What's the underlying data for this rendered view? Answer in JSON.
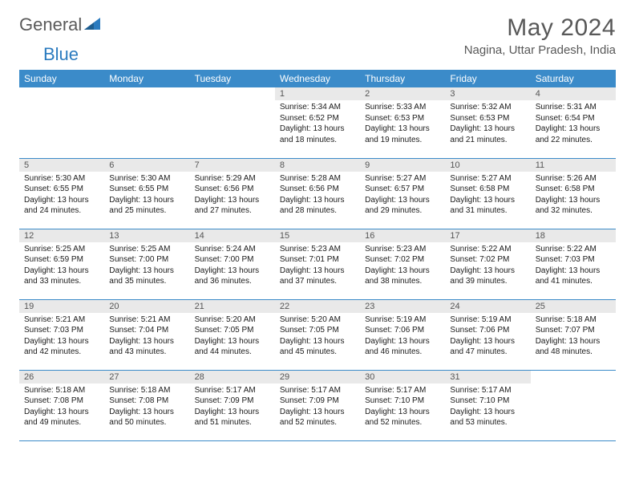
{
  "logo": {
    "part1": "General",
    "part2": "Blue"
  },
  "title": "May 2024",
  "location": "Nagina, Uttar Pradesh, India",
  "colors": {
    "header_bg": "#3b8bc9",
    "header_text": "#ffffff",
    "daynum_bg": "#e9e9e9",
    "daynum_text": "#555555",
    "body_text": "#1a1a1a",
    "rule": "#3b8bc9",
    "title_text": "#585858",
    "logo_gray": "#5a5a5a",
    "logo_blue": "#2b7bbf"
  },
  "day_names": [
    "Sunday",
    "Monday",
    "Tuesday",
    "Wednesday",
    "Thursday",
    "Friday",
    "Saturday"
  ],
  "weeks": [
    [
      null,
      null,
      null,
      {
        "n": "1",
        "sr": "Sunrise: 5:34 AM",
        "ss": "Sunset: 6:52 PM",
        "d1": "Daylight: 13 hours",
        "d2": "and 18 minutes."
      },
      {
        "n": "2",
        "sr": "Sunrise: 5:33 AM",
        "ss": "Sunset: 6:53 PM",
        "d1": "Daylight: 13 hours",
        "d2": "and 19 minutes."
      },
      {
        "n": "3",
        "sr": "Sunrise: 5:32 AM",
        "ss": "Sunset: 6:53 PM",
        "d1": "Daylight: 13 hours",
        "d2": "and 21 minutes."
      },
      {
        "n": "4",
        "sr": "Sunrise: 5:31 AM",
        "ss": "Sunset: 6:54 PM",
        "d1": "Daylight: 13 hours",
        "d2": "and 22 minutes."
      }
    ],
    [
      {
        "n": "5",
        "sr": "Sunrise: 5:30 AM",
        "ss": "Sunset: 6:55 PM",
        "d1": "Daylight: 13 hours",
        "d2": "and 24 minutes."
      },
      {
        "n": "6",
        "sr": "Sunrise: 5:30 AM",
        "ss": "Sunset: 6:55 PM",
        "d1": "Daylight: 13 hours",
        "d2": "and 25 minutes."
      },
      {
        "n": "7",
        "sr": "Sunrise: 5:29 AM",
        "ss": "Sunset: 6:56 PM",
        "d1": "Daylight: 13 hours",
        "d2": "and 27 minutes."
      },
      {
        "n": "8",
        "sr": "Sunrise: 5:28 AM",
        "ss": "Sunset: 6:56 PM",
        "d1": "Daylight: 13 hours",
        "d2": "and 28 minutes."
      },
      {
        "n": "9",
        "sr": "Sunrise: 5:27 AM",
        "ss": "Sunset: 6:57 PM",
        "d1": "Daylight: 13 hours",
        "d2": "and 29 minutes."
      },
      {
        "n": "10",
        "sr": "Sunrise: 5:27 AM",
        "ss": "Sunset: 6:58 PM",
        "d1": "Daylight: 13 hours",
        "d2": "and 31 minutes."
      },
      {
        "n": "11",
        "sr": "Sunrise: 5:26 AM",
        "ss": "Sunset: 6:58 PM",
        "d1": "Daylight: 13 hours",
        "d2": "and 32 minutes."
      }
    ],
    [
      {
        "n": "12",
        "sr": "Sunrise: 5:25 AM",
        "ss": "Sunset: 6:59 PM",
        "d1": "Daylight: 13 hours",
        "d2": "and 33 minutes."
      },
      {
        "n": "13",
        "sr": "Sunrise: 5:25 AM",
        "ss": "Sunset: 7:00 PM",
        "d1": "Daylight: 13 hours",
        "d2": "and 35 minutes."
      },
      {
        "n": "14",
        "sr": "Sunrise: 5:24 AM",
        "ss": "Sunset: 7:00 PM",
        "d1": "Daylight: 13 hours",
        "d2": "and 36 minutes."
      },
      {
        "n": "15",
        "sr": "Sunrise: 5:23 AM",
        "ss": "Sunset: 7:01 PM",
        "d1": "Daylight: 13 hours",
        "d2": "and 37 minutes."
      },
      {
        "n": "16",
        "sr": "Sunrise: 5:23 AM",
        "ss": "Sunset: 7:02 PM",
        "d1": "Daylight: 13 hours",
        "d2": "and 38 minutes."
      },
      {
        "n": "17",
        "sr": "Sunrise: 5:22 AM",
        "ss": "Sunset: 7:02 PM",
        "d1": "Daylight: 13 hours",
        "d2": "and 39 minutes."
      },
      {
        "n": "18",
        "sr": "Sunrise: 5:22 AM",
        "ss": "Sunset: 7:03 PM",
        "d1": "Daylight: 13 hours",
        "d2": "and 41 minutes."
      }
    ],
    [
      {
        "n": "19",
        "sr": "Sunrise: 5:21 AM",
        "ss": "Sunset: 7:03 PM",
        "d1": "Daylight: 13 hours",
        "d2": "and 42 minutes."
      },
      {
        "n": "20",
        "sr": "Sunrise: 5:21 AM",
        "ss": "Sunset: 7:04 PM",
        "d1": "Daylight: 13 hours",
        "d2": "and 43 minutes."
      },
      {
        "n": "21",
        "sr": "Sunrise: 5:20 AM",
        "ss": "Sunset: 7:05 PM",
        "d1": "Daylight: 13 hours",
        "d2": "and 44 minutes."
      },
      {
        "n": "22",
        "sr": "Sunrise: 5:20 AM",
        "ss": "Sunset: 7:05 PM",
        "d1": "Daylight: 13 hours",
        "d2": "and 45 minutes."
      },
      {
        "n": "23",
        "sr": "Sunrise: 5:19 AM",
        "ss": "Sunset: 7:06 PM",
        "d1": "Daylight: 13 hours",
        "d2": "and 46 minutes."
      },
      {
        "n": "24",
        "sr": "Sunrise: 5:19 AM",
        "ss": "Sunset: 7:06 PM",
        "d1": "Daylight: 13 hours",
        "d2": "and 47 minutes."
      },
      {
        "n": "25",
        "sr": "Sunrise: 5:18 AM",
        "ss": "Sunset: 7:07 PM",
        "d1": "Daylight: 13 hours",
        "d2": "and 48 minutes."
      }
    ],
    [
      {
        "n": "26",
        "sr": "Sunrise: 5:18 AM",
        "ss": "Sunset: 7:08 PM",
        "d1": "Daylight: 13 hours",
        "d2": "and 49 minutes."
      },
      {
        "n": "27",
        "sr": "Sunrise: 5:18 AM",
        "ss": "Sunset: 7:08 PM",
        "d1": "Daylight: 13 hours",
        "d2": "and 50 minutes."
      },
      {
        "n": "28",
        "sr": "Sunrise: 5:17 AM",
        "ss": "Sunset: 7:09 PM",
        "d1": "Daylight: 13 hours",
        "d2": "and 51 minutes."
      },
      {
        "n": "29",
        "sr": "Sunrise: 5:17 AM",
        "ss": "Sunset: 7:09 PM",
        "d1": "Daylight: 13 hours",
        "d2": "and 52 minutes."
      },
      {
        "n": "30",
        "sr": "Sunrise: 5:17 AM",
        "ss": "Sunset: 7:10 PM",
        "d1": "Daylight: 13 hours",
        "d2": "and 52 minutes."
      },
      {
        "n": "31",
        "sr": "Sunrise: 5:17 AM",
        "ss": "Sunset: 7:10 PM",
        "d1": "Daylight: 13 hours",
        "d2": "and 53 minutes."
      },
      null
    ]
  ]
}
